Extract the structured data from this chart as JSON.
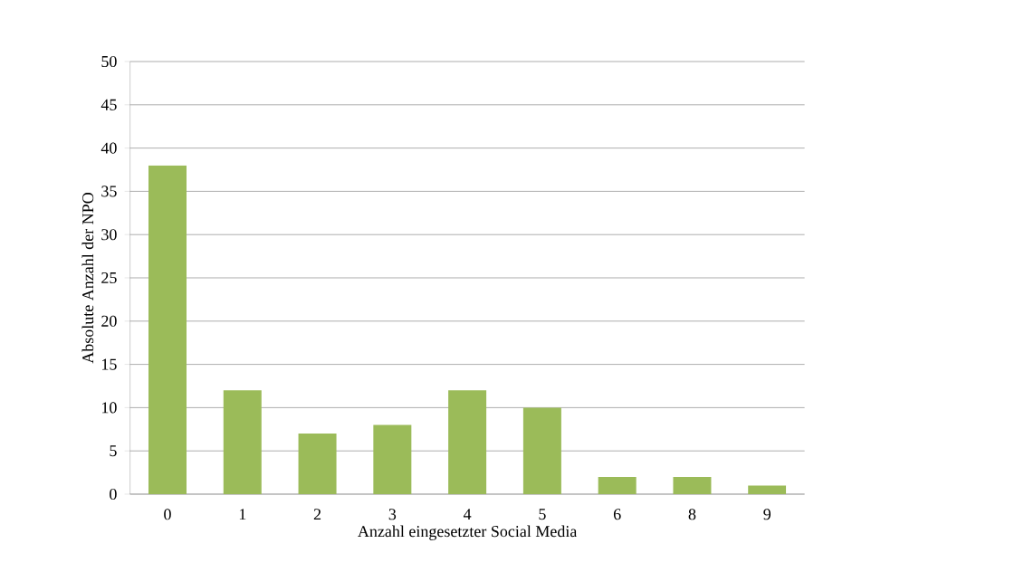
{
  "chart_data": {
    "type": "bar",
    "xlabel": "Anzahl eingesetzter Social Media",
    "ylabel": "Absolute Anzahl der NPO",
    "categories": [
      "0",
      "1",
      "2",
      "3",
      "4",
      "5",
      "6",
      "8",
      "9"
    ],
    "values": [
      38,
      12,
      7,
      8,
      12,
      10,
      2,
      2,
      1
    ],
    "color": "#9bbb59",
    "ylim": [
      0,
      50
    ],
    "yticks": [
      0,
      5,
      10,
      15,
      20,
      25,
      30,
      35,
      40,
      45,
      50
    ],
    "grid": "y"
  }
}
